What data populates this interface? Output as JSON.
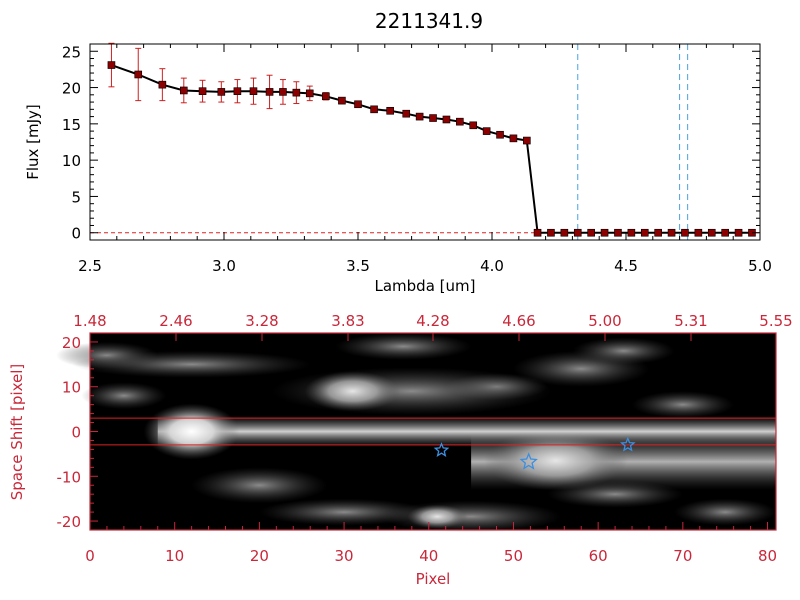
{
  "colors": {
    "axis_red": "#c8283a",
    "error_bar": "#cc2020",
    "marker_fill": "#8b0000",
    "line": "#000000",
    "dashed": "#4aa3df",
    "star": "#3b8fe0",
    "band_line": "#dd2222"
  },
  "chart_data": [
    {
      "type": "line",
      "title": "2211341.9",
      "xlabel": "Lambda [um]",
      "ylabel": "Flux [mJy]",
      "xlim": [
        2.5,
        5.0
      ],
      "ylim": [
        -1,
        26
      ],
      "xticks": [
        "2.5",
        "3.0",
        "3.5",
        "4.0",
        "4.5",
        "5.0"
      ],
      "xtick_values": [
        2.5,
        3.0,
        3.5,
        4.0,
        4.5,
        5.0
      ],
      "yticks": [
        "0",
        "5",
        "10",
        "15",
        "20",
        "25"
      ],
      "ytick_values": [
        0,
        5,
        10,
        15,
        20,
        25
      ],
      "grid": false,
      "series": [
        {
          "x": [
            2.58,
            2.68,
            2.77,
            2.85,
            2.92,
            2.99,
            3.05,
            3.11,
            3.17,
            3.22,
            3.27,
            3.32,
            3.38,
            3.44,
            3.5,
            3.56,
            3.62,
            3.68,
            3.73,
            3.78,
            3.83,
            3.88,
            3.93,
            3.98,
            4.03,
            4.08,
            4.13,
            4.17,
            4.22,
            4.27,
            4.32,
            4.37,
            4.42,
            4.47,
            4.52,
            4.57,
            4.62,
            4.67,
            4.72,
            4.77,
            4.82,
            4.87,
            4.92,
            4.97
          ],
          "y": [
            23.1,
            21.8,
            20.4,
            19.6,
            19.5,
            19.4,
            19.5,
            19.5,
            19.4,
            19.4,
            19.3,
            19.2,
            18.8,
            18.2,
            17.7,
            17.0,
            16.8,
            16.4,
            16.0,
            15.8,
            15.6,
            15.3,
            14.8,
            14.0,
            13.5,
            13.0,
            12.7,
            0,
            0,
            0,
            0,
            0,
            0,
            0,
            0,
            0,
            0,
            0,
            0,
            0,
            0,
            0,
            0,
            0
          ],
          "yerr": [
            3.0,
            3.6,
            2.2,
            1.7,
            1.5,
            1.4,
            1.6,
            1.8,
            2.3,
            1.7,
            1.5,
            1.0,
            0.5,
            0.3,
            0.3,
            0.2,
            0.2,
            0.2,
            0.2,
            0.2,
            0.2,
            0.2,
            0.2,
            0.2,
            0.2,
            0.2,
            0.2,
            0.2,
            0.2,
            0.2,
            0.2,
            0.2,
            0.2,
            0.2,
            0.2,
            0.2,
            0.2,
            0.2,
            0.2,
            0.2,
            0.2,
            0.2,
            0.2,
            0.2
          ]
        }
      ],
      "vlines": [
        4.32,
        4.7,
        4.73
      ]
    },
    {
      "type": "heatmap",
      "xlabel": "Pixel",
      "ylabel": "Space Shift [pixel]",
      "xlim": [
        0,
        81
      ],
      "ylim": [
        -22,
        22
      ],
      "xticks": [
        "0",
        "10",
        "20",
        "30",
        "40",
        "50",
        "60",
        "70",
        "80"
      ],
      "xtick_values": [
        0,
        10,
        20,
        30,
        40,
        50,
        60,
        70,
        80
      ],
      "yticks": [
        "20",
        "10",
        "0",
        "-10",
        "-20"
      ],
      "ytick_values": [
        20,
        10,
        0,
        -10,
        -20
      ],
      "top_ticks": [
        "1.48",
        "2.46",
        "3.28",
        "3.83",
        "4.28",
        "4.66",
        "5.00",
        "5.31",
        "5.55"
      ],
      "band": [
        -3,
        3
      ],
      "stars": [
        {
          "x": 41.5,
          "y": -4.2
        },
        {
          "x": 51.8,
          "y": -6.8
        },
        {
          "x": 63.5,
          "y": -3.0
        }
      ]
    }
  ]
}
